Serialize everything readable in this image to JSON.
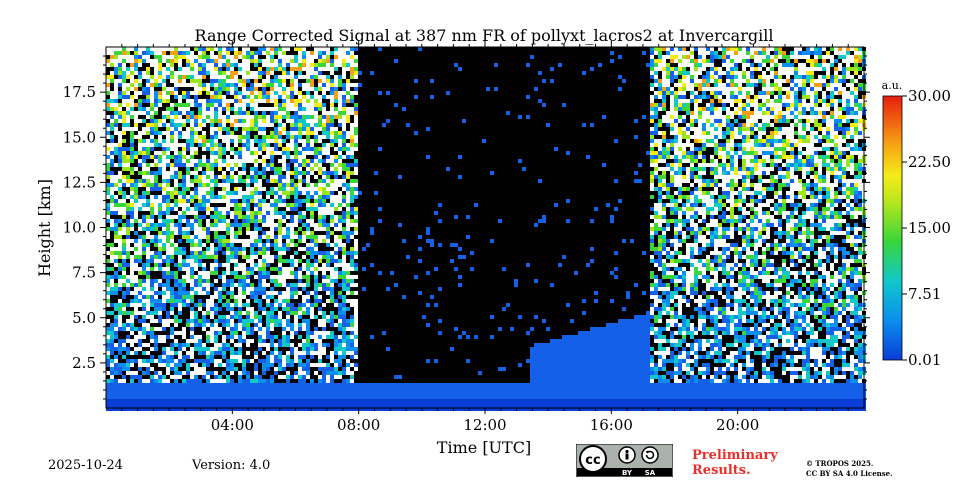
{
  "chart_data": {
    "type": "heatmap",
    "title": "Range Corrected Signal at 387 nm FR of pollyxt_lacros2 at Invercargill",
    "xlabel": "Time [UTC]",
    "ylabel": "Height [km]",
    "xlim_hours": [
      0,
      24
    ],
    "ylim_km": [
      0,
      20
    ],
    "x_ticks": [
      {
        "value": 4,
        "label": "04:00"
      },
      {
        "value": 8,
        "label": "08:00"
      },
      {
        "value": 12,
        "label": "12:00"
      },
      {
        "value": 16,
        "label": "16:00"
      },
      {
        "value": 20,
        "label": "20:00"
      }
    ],
    "y_ticks": [
      {
        "value": 2.5,
        "label": "2.5"
      },
      {
        "value": 5.0,
        "label": "5.0"
      },
      {
        "value": 7.5,
        "label": "7.5"
      },
      {
        "value": 10.0,
        "label": "10.0"
      },
      {
        "value": 12.5,
        "label": "12.5"
      },
      {
        "value": 15.0,
        "label": "15.0"
      },
      {
        "value": 17.5,
        "label": "17.5"
      }
    ],
    "colorbar": {
      "unit": "a.u.",
      "min": 0.01,
      "max": 30.0,
      "tick_values": [
        0.01,
        7.51,
        15.0,
        22.5,
        30.0
      ],
      "tick_labels": [
        "0.01",
        "7.51",
        "15.00",
        "22.50",
        "30.00"
      ]
    },
    "daylight_gap_hours": [
      7.95,
      17.2
    ],
    "boundary_layer_km": 1.5
  },
  "footer": {
    "date": "2025-10-24",
    "version": "Version: 4.0",
    "preliminary_line1": "Preliminary",
    "preliminary_line2": "Results.",
    "license_line1": "© TROPOS 2025.",
    "license_line2": "CC BY SA 4.0 License.",
    "cc_text": "cc",
    "by_text": "BY",
    "sa_text": "SA"
  }
}
